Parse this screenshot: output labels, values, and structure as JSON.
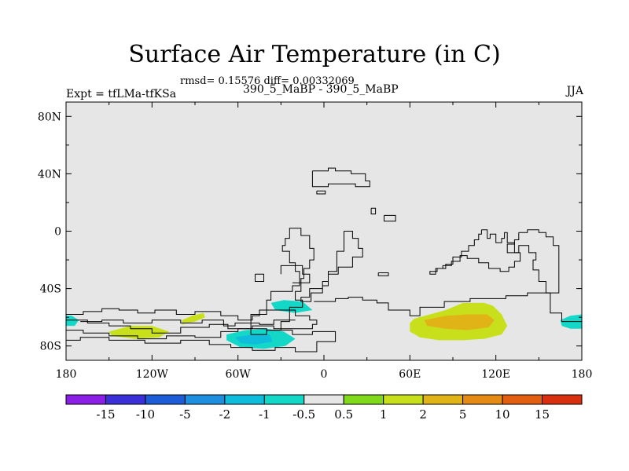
{
  "header": {
    "title": "Surface Air Temperature (in C)",
    "stats": "rmsd= 0.15576 diff= 0.00332069",
    "subtitle": "390_5_MaBP - 390_5_MaBP",
    "experiment": "Expt = tfLMa-tfKSa",
    "season": "JJA"
  },
  "chart_data": {
    "type": "heatmap",
    "title": "Surface Air Temperature (in C)",
    "subtitle": "390_5_MaBP - 390_5_MaBP",
    "xlabel": "",
    "ylabel": "",
    "xlim": [
      -180,
      180
    ],
    "ylim": [
      -90,
      90
    ],
    "x_ticks": [
      {
        "value": -180,
        "label": "180"
      },
      {
        "value": -120,
        "label": "120W"
      },
      {
        "value": -60,
        "label": "60W"
      },
      {
        "value": 0,
        "label": "0"
      },
      {
        "value": 60,
        "label": "60E"
      },
      {
        "value": 120,
        "label": "120E"
      },
      {
        "value": 180,
        "label": "180"
      }
    ],
    "y_ticks": [
      {
        "value": 80,
        "label": "80N"
      },
      {
        "value": 40,
        "label": "40N"
      },
      {
        "value": 0,
        "label": "0"
      },
      {
        "value": -40,
        "label": "40S"
      },
      {
        "value": -80,
        "label": "80S"
      }
    ],
    "background_color": "#e6e6e6",
    "colorbar": {
      "colors": [
        "#8b1fe5",
        "#3b2fd8",
        "#1c5cd6",
        "#1d8fde",
        "#10bcdc",
        "#13d8c8",
        "#e6e6e6",
        "#80d91a",
        "#c8e01b",
        "#e0b416",
        "#e58a14",
        "#e25e10",
        "#d8300e"
      ],
      "labels": [
        "-15",
        "-10",
        "-5",
        "-2",
        "-1",
        "-0.5",
        "0.5",
        "1",
        "2",
        "5",
        "10",
        "15"
      ]
    },
    "anomalies": [
      {
        "name": "east-60e-120e-outer",
        "lon": [
          63,
          85,
          97,
          112,
          118,
          124,
          128,
          124,
          112,
          97,
          80,
          67,
          60,
          60
        ],
        "lat": [
          -61,
          -55,
          -50,
          -50,
          -52,
          -58,
          -66,
          -72,
          -75,
          -76,
          -76,
          -74,
          -70,
          -64
        ],
        "level": "1"
      },
      {
        "name": "east-60e-120e-core",
        "lon": [
          70,
          85,
          100,
          114,
          119,
          115,
          100,
          85,
          72
        ],
        "lat": [
          -62,
          -59,
          -58,
          -58,
          -62,
          -67,
          -69,
          -68,
          -66
        ],
        "level": "2"
      },
      {
        "name": "far-east-180",
        "lon": [
          165,
          172,
          180,
          180,
          172,
          166
        ],
        "lat": [
          -62,
          -59,
          -58,
          -68,
          -68,
          -66
        ],
        "level": "-1"
      },
      {
        "name": "south-atlantic-30w",
        "lon": [
          -37,
          -28,
          -15,
          -8,
          -20,
          -34
        ],
        "lat": [
          -50,
          -48,
          -49,
          -55,
          -57,
          -55
        ],
        "level": "-1"
      },
      {
        "name": "south-60w-outer",
        "lon": [
          -68,
          -55,
          -40,
          -28,
          -20,
          -27,
          -42,
          -58,
          -68
        ],
        "lat": [
          -72,
          -69,
          -68,
          -70,
          -75,
          -80,
          -82,
          -81,
          -76
        ],
        "level": "-1"
      },
      {
        "name": "south-60w-core",
        "lon": [
          -62,
          -50,
          -38,
          -36,
          -48,
          -58
        ],
        "lat": [
          -74,
          -72,
          -72,
          -77,
          -79,
          -78
        ],
        "level": "-2"
      },
      {
        "name": "west-150w",
        "lon": [
          -150,
          -135,
          -120,
          -108,
          -115,
          -132,
          -148
        ],
        "lat": [
          -70,
          -66,
          -66,
          -70,
          -74,
          -75,
          -73
        ],
        "level": "1"
      },
      {
        "name": "west-100w",
        "lon": [
          -99,
          -92,
          -84,
          -83,
          -90,
          -99
        ],
        "lat": [
          -62,
          -59,
          -57,
          -60,
          -63,
          -65
        ],
        "level": "1"
      },
      {
        "name": "west-edge-180",
        "lon": [
          -180,
          -176,
          -171,
          -174,
          -180
        ],
        "lat": [
          -59,
          -59,
          -62,
          -66,
          -66
        ],
        "level": "-1"
      }
    ],
    "coastlines": [
      {
        "name": "northern-land",
        "lon": [
          -8,
          3,
          3,
          8,
          8,
          19,
          19,
          29,
          29,
          32,
          32,
          22,
          22,
          3,
          3,
          -8,
          -8
        ],
        "lat": [
          42,
          42,
          44,
          44,
          42,
          42,
          40,
          40,
          35,
          35,
          31,
          31,
          33,
          33,
          31,
          31,
          42
        ]
      },
      {
        "name": "northern-islet",
        "lon": [
          -5,
          1,
          1,
          -5,
          -5
        ],
        "lat": [
          28,
          28,
          26,
          26,
          28
        ]
      },
      {
        "name": "small-islet-a",
        "lon": [
          33,
          36,
          36,
          33,
          33
        ],
        "lat": [
          16,
          16,
          12,
          12,
          16
        ]
      },
      {
        "name": "small-islet-b",
        "lon": [
          42,
          50,
          50,
          42,
          42
        ],
        "lat": [
          11,
          11,
          7,
          7,
          11
        ]
      },
      {
        "name": "south-america",
        "lon": [
          -20,
          -16,
          -16,
          -10,
          -10,
          -7,
          -7,
          -10,
          -10,
          -14,
          -14,
          -16,
          -16,
          -20,
          -20,
          -15,
          -15,
          -24,
          -24,
          -30,
          -30,
          -40,
          -40,
          -51,
          -51,
          -40,
          -40,
          -37,
          -37,
          -22,
          -22,
          -17,
          -17,
          -20,
          -20,
          -24,
          -24,
          -29,
          -29,
          -27,
          -27,
          -24,
          -24,
          -20
        ],
        "lat": [
          2,
          2,
          -3,
          -3,
          -12,
          -12,
          -20,
          -20,
          -26,
          -26,
          -33,
          -33,
          -42,
          -42,
          -48,
          -48,
          -53,
          -53,
          -63,
          -63,
          -69,
          -69,
          -72,
          -72,
          -58,
          -58,
          -48,
          -48,
          -42,
          -42,
          -38,
          -38,
          -28,
          -28,
          -22,
          -22,
          -14,
          -14,
          -10,
          -10,
          -5,
          -5,
          2,
          2
        ]
      },
      {
        "name": "small-west-islet",
        "lon": [
          -48,
          -42,
          -42,
          -48,
          -48
        ],
        "lat": [
          -30,
          -30,
          -35,
          -35,
          -30
        ]
      },
      {
        "name": "africa-island",
        "lon": [
          14,
          20,
          20,
          24,
          24,
          27,
          27,
          20,
          20,
          10,
          10,
          3,
          3,
          -1,
          -1,
          -9,
          -9,
          -16,
          -16,
          -10,
          -10,
          -1,
          -1,
          3,
          3,
          9,
          9,
          14,
          14
        ],
        "lat": [
          0,
          0,
          -5,
          -5,
          -12,
          -12,
          -18,
          -18,
          -25,
          -25,
          -30,
          -30,
          -38,
          -38,
          -43,
          -43,
          -49,
          -49,
          -46,
          -46,
          -40,
          -40,
          -35,
          -35,
          -28,
          -28,
          -14,
          -14,
          0
        ]
      },
      {
        "name": "mid-islet",
        "lon": [
          38,
          45,
          45,
          38,
          38
        ],
        "lat": [
          -29,
          -29,
          -31,
          -31,
          -29
        ]
      },
      {
        "name": "east-long-coast",
        "lon": [
          -7,
          8,
          8,
          17,
          17,
          27,
          27,
          37,
          37,
          45,
          45,
          60,
          60,
          67,
          67,
          84,
          84,
          102,
          102,
          127,
          127,
          142,
          142,
          158,
          158,
          166,
          166,
          180
        ],
        "lat": [
          -49,
          -49,
          -47,
          -47,
          -46,
          -46,
          -48,
          -48,
          -50,
          -50,
          -55,
          -55,
          -59,
          -59,
          -53,
          -53,
          -49,
          -49,
          -47,
          -47,
          -45,
          -45,
          -43,
          -43,
          -57,
          -57,
          -63,
          -63
        ]
      },
      {
        "name": "east-landmass",
        "lon": [
          110,
          114,
          114,
          116,
          116,
          120,
          120,
          124,
          124,
          126,
          126,
          128,
          128,
          133,
          133,
          137,
          137,
          133,
          133,
          129,
          129,
          123,
          123,
          115,
          115,
          108,
          108,
          100,
          100,
          95,
          95,
          89,
          89,
          83,
          83,
          78,
          78,
          74,
          74,
          79,
          79,
          85,
          85,
          90,
          90,
          96,
          96,
          101,
          101,
          105,
          105,
          108,
          108,
          110,
          110
        ],
        "lat": [
          1,
          1,
          -5,
          -5,
          -2,
          -2,
          -8,
          -8,
          -5,
          -5,
          -1,
          -1,
          -8,
          -8,
          -15,
          -15,
          -21,
          -21,
          -25,
          -25,
          -28,
          -28,
          -26,
          -26,
          -22,
          -22,
          -19,
          -19,
          -17,
          -17,
          -21,
          -21,
          -24,
          -24,
          -26,
          -26,
          -30,
          -30,
          -28,
          -28,
          -26,
          -26,
          -23,
          -23,
          -18,
          -18,
          -14,
          -14,
          -10,
          -10,
          -6,
          -6,
          -2,
          -2,
          1
        ]
      },
      {
        "name": "far-east-peninsula",
        "lon": [
          136,
          142,
          142,
          150,
          150,
          155,
          155,
          160,
          160,
          164,
          164,
          155,
          155,
          150,
          150,
          146,
          146,
          148,
          148,
          143,
          143,
          136,
          136,
          128,
          128,
          133,
          133,
          136,
          136
        ],
        "lat": [
          -1,
          -1,
          1,
          1,
          -1,
          -1,
          -4,
          -4,
          -10,
          -10,
          -43,
          -43,
          -35,
          -35,
          -27,
          -27,
          -20,
          -20,
          -15,
          -15,
          -10,
          -10,
          -15,
          -15,
          -9,
          -9,
          -6,
          -6,
          -1
        ]
      },
      {
        "name": "west-arc",
        "lon": [
          -180,
          -168,
          -168,
          -155,
          -155,
          -143,
          -143,
          -130,
          -130,
          -118,
          -118,
          -103,
          -103,
          -90,
          -90,
          -72,
          -72,
          -60,
          -60,
          -50,
          -50,
          -45,
          -45,
          -20,
          -20,
          -10,
          -10,
          -5,
          -5,
          -8,
          -8,
          -35,
          -35,
          -50,
          -50,
          -67,
          -67,
          -80,
          -80,
          -100,
          -100,
          -120,
          -120,
          -135,
          -135,
          -150,
          -150,
          -165,
          -165,
          -180
        ],
        "lat": [
          -58,
          -58,
          -56,
          -56,
          -54,
          -54,
          -55,
          -55,
          -57,
          -57,
          -55,
          -55,
          -58,
          -58,
          -56,
          -56,
          -59,
          -59,
          -62,
          -62,
          -59,
          -59,
          -55,
          -55,
          -59,
          -59,
          -62,
          -62,
          -65,
          -65,
          -68,
          -68,
          -66,
          -66,
          -68,
          -68,
          -65,
          -65,
          -67,
          -67,
          -71,
          -71,
          -68,
          -68,
          -66,
          -66,
          -64,
          -64,
          -62,
          -62
        ]
      },
      {
        "name": "west-arc-inner",
        "lon": [
          -170,
          -155,
          -155,
          -140,
          -140,
          -120,
          -120,
          -100,
          -100,
          -85,
          -85,
          -70,
          -70,
          -62,
          -62,
          -45,
          -45,
          -35,
          -35,
          -20
        ],
        "lat": [
          -63,
          -63,
          -62,
          -62,
          -64,
          -64,
          -62,
          -62,
          -64,
          -64,
          -62,
          -62,
          -66,
          -66,
          -64,
          -64,
          -65,
          -65,
          -62,
          -62
        ]
      },
      {
        "name": "antarctic-margin",
        "lon": [
          -180,
          -168,
          -168,
          -150,
          -150,
          -130,
          -130,
          -110,
          -110,
          -90,
          -90,
          -72,
          -72,
          -60,
          -60,
          -40,
          -40,
          -22,
          -22,
          -8,
          -8,
          8,
          8,
          -5,
          -5,
          -20,
          -20,
          -34,
          -34,
          -50,
          -50,
          -65,
          -65,
          -80,
          -80,
          -100,
          -100,
          -125,
          -125,
          -150,
          -150,
          -170,
          -170,
          -180
        ],
        "lat": [
          -69,
          -69,
          -71,
          -71,
          -73,
          -73,
          -75,
          -75,
          -73,
          -73,
          -74,
          -74,
          -70,
          -70,
          -68,
          -68,
          -69,
          -69,
          -72,
          -72,
          -70,
          -70,
          -77,
          -77,
          -84,
          -84,
          -81,
          -81,
          -83,
          -83,
          -81,
          -81,
          -79,
          -79,
          -76,
          -76,
          -78,
          -78,
          -76,
          -76,
          -74,
          -74,
          -76,
          -76
        ]
      },
      {
        "name": "mid-south-cross",
        "lon": [
          -22,
          -10,
          -10,
          -15,
          -15,
          -30,
          -30
        ],
        "lat": [
          -36,
          -36,
          -30,
          -30,
          -24,
          -24,
          -30
        ]
      }
    ]
  }
}
